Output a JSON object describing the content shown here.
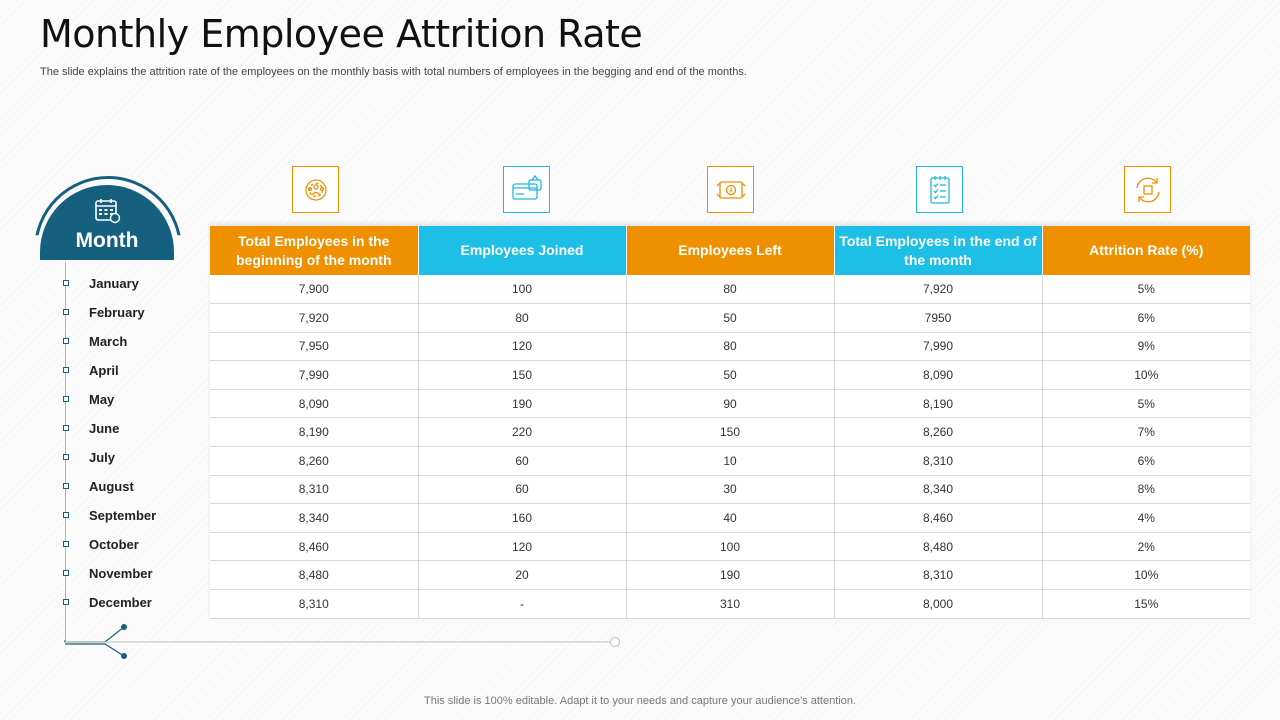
{
  "title": "Monthly Employee Attrition Rate",
  "subtitle": "The slide explains the attrition rate of the employees on the monthly basis with total numbers of employees in the begging and end of the months.",
  "month_badge": {
    "label": "Month",
    "icon": "calendar-icon"
  },
  "months": [
    "January",
    "February",
    "March",
    "April",
    "May",
    "June",
    "July",
    "August",
    "September",
    "October",
    "November",
    "December"
  ],
  "column_icons": [
    "gear-group-icon",
    "credit-card-icon",
    "money-transfer-icon",
    "checklist-icon",
    "refresh-cycle-icon"
  ],
  "colors": {
    "orange": "#ee9000",
    "blue": "#1ebfe6",
    "teal": "#155f7f"
  },
  "table": {
    "headers": [
      "Total Employees in the beginning of the month",
      "Employees Joined",
      "Employees Left",
      "Total Employees in the end of the month",
      "Attrition Rate (%)"
    ],
    "rows": [
      [
        "7,900",
        "100",
        "80",
        "7,920",
        "5%"
      ],
      [
        "7,920",
        "80",
        "50",
        "7950",
        "6%"
      ],
      [
        "7,950",
        "120",
        "80",
        "7,990",
        "9%"
      ],
      [
        "7,990",
        "150",
        "50",
        "8,090",
        "10%"
      ],
      [
        "8,090",
        "190",
        "90",
        "8,190",
        "5%"
      ],
      [
        "8,190",
        "220",
        "150",
        "8,260",
        "7%"
      ],
      [
        "8,260",
        "60",
        "10",
        "8,310",
        "6%"
      ],
      [
        "8,310",
        "60",
        "30",
        "8,340",
        "8%"
      ],
      [
        "8,340",
        "160",
        "40",
        "8,460",
        "4%"
      ],
      [
        "8,460",
        "120",
        "100",
        "8,480",
        "2%"
      ],
      [
        "8,480",
        "20",
        "190",
        "8,310",
        "10%"
      ],
      [
        "8,310",
        "-",
        "310",
        "8,000",
        "15%"
      ]
    ]
  },
  "footer": "This slide is 100% editable. Adapt it to your needs and capture your audience's attention."
}
